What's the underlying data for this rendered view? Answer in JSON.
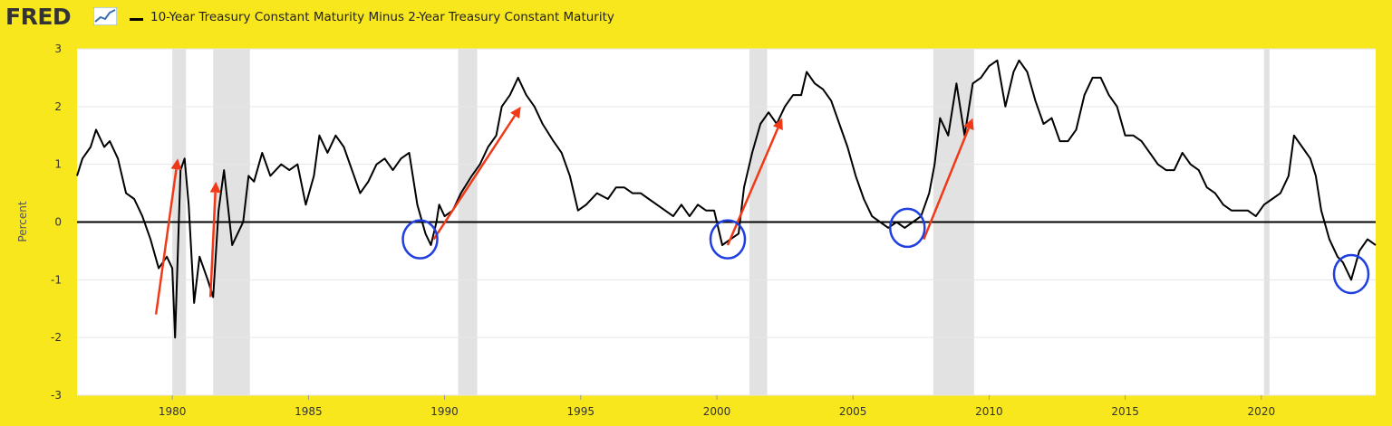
{
  "header": {
    "logo_text": "FRED",
    "logo_icon": "line-chart-icon",
    "series_title": "10-Year Treasury Constant Maturity Minus 2-Year Treasury Constant Maturity"
  },
  "colors": {
    "background": "#f8e71c",
    "plot": "#ffffff",
    "line": "#000000",
    "recession": "#e2e2e2",
    "arrow": "#f03a17",
    "circle": "#1f3fe0",
    "zero_line": "#000000"
  },
  "chart_data": {
    "type": "line",
    "title": "10-Year Treasury Constant Maturity Minus 2-Year Treasury Constant Maturity",
    "xlabel": "",
    "ylabel": "Percent",
    "xlim": [
      1976.5,
      2024.2
    ],
    "ylim": [
      -3,
      3
    ],
    "x_ticks": [
      1980,
      1985,
      1990,
      1995,
      2000,
      2005,
      2010,
      2015,
      2020
    ],
    "x_tick_labels": [
      "1980",
      "1985",
      "1990",
      "1995",
      "2000",
      "2005",
      "2010",
      "2015",
      "2020"
    ],
    "y_ticks": [
      -3,
      -2,
      -1,
      0,
      1,
      2,
      3
    ],
    "y_tick_labels": [
      "-3",
      "-2",
      "-1",
      "0",
      "1",
      "2",
      "3"
    ],
    "grid": "horizontal",
    "recessions": [
      [
        1980.0,
        1980.5
      ],
      [
        1981.5,
        1982.85
      ],
      [
        1990.5,
        1991.2
      ],
      [
        2001.2,
        2001.85
      ],
      [
        2007.95,
        2009.45
      ],
      [
        2020.1,
        2020.3
      ]
    ],
    "series": [
      {
        "points": [
          [
            1976.5,
            0.8
          ],
          [
            1976.7,
            1.1
          ],
          [
            1977.0,
            1.3
          ],
          [
            1977.2,
            1.6
          ],
          [
            1977.5,
            1.3
          ],
          [
            1977.7,
            1.4
          ],
          [
            1978.0,
            1.1
          ],
          [
            1978.3,
            0.5
          ],
          [
            1978.6,
            0.4
          ],
          [
            1978.9,
            0.1
          ],
          [
            1979.2,
            -0.3
          ],
          [
            1979.5,
            -0.8
          ],
          [
            1979.8,
            -0.6
          ],
          [
            1980.0,
            -0.8
          ],
          [
            1980.1,
            -2.0
          ],
          [
            1980.3,
            0.9
          ],
          [
            1980.45,
            1.1
          ],
          [
            1980.6,
            0.3
          ],
          [
            1980.8,
            -1.4
          ],
          [
            1981.0,
            -0.6
          ],
          [
            1981.3,
            -1.0
          ],
          [
            1981.5,
            -1.3
          ],
          [
            1981.7,
            0.2
          ],
          [
            1981.9,
            0.9
          ],
          [
            1982.2,
            -0.4
          ],
          [
            1982.4,
            -0.2
          ],
          [
            1982.6,
            0.0
          ],
          [
            1982.8,
            0.8
          ],
          [
            1983.0,
            0.7
          ],
          [
            1983.3,
            1.2
          ],
          [
            1983.6,
            0.8
          ],
          [
            1984.0,
            1.0
          ],
          [
            1984.3,
            0.9
          ],
          [
            1984.6,
            1.0
          ],
          [
            1984.9,
            0.3
          ],
          [
            1985.2,
            0.8
          ],
          [
            1985.4,
            1.5
          ],
          [
            1985.7,
            1.2
          ],
          [
            1986.0,
            1.5
          ],
          [
            1986.3,
            1.3
          ],
          [
            1986.6,
            0.9
          ],
          [
            1986.9,
            0.5
          ],
          [
            1987.2,
            0.7
          ],
          [
            1987.5,
            1.0
          ],
          [
            1987.8,
            1.1
          ],
          [
            1988.1,
            0.9
          ],
          [
            1988.4,
            1.1
          ],
          [
            1988.7,
            1.2
          ],
          [
            1989.0,
            0.3
          ],
          [
            1989.3,
            -0.2
          ],
          [
            1989.5,
            -0.4
          ],
          [
            1989.7,
            0.0
          ],
          [
            1989.8,
            0.3
          ],
          [
            1990.0,
            0.1
          ],
          [
            1990.3,
            0.2
          ],
          [
            1990.6,
            0.5
          ],
          [
            1991.0,
            0.8
          ],
          [
            1991.3,
            1.0
          ],
          [
            1991.6,
            1.3
          ],
          [
            1991.9,
            1.5
          ],
          [
            1992.1,
            2.0
          ],
          [
            1992.4,
            2.2
          ],
          [
            1992.7,
            2.5
          ],
          [
            1993.0,
            2.2
          ],
          [
            1993.3,
            2.0
          ],
          [
            1993.6,
            1.7
          ],
          [
            1994.0,
            1.4
          ],
          [
            1994.3,
            1.2
          ],
          [
            1994.6,
            0.8
          ],
          [
            1994.9,
            0.2
          ],
          [
            1995.2,
            0.3
          ],
          [
            1995.6,
            0.5
          ],
          [
            1996.0,
            0.4
          ],
          [
            1996.3,
            0.6
          ],
          [
            1996.6,
            0.6
          ],
          [
            1996.9,
            0.5
          ],
          [
            1997.2,
            0.5
          ],
          [
            1997.5,
            0.4
          ],
          [
            1997.8,
            0.3
          ],
          [
            1998.1,
            0.2
          ],
          [
            1998.4,
            0.1
          ],
          [
            1998.7,
            0.3
          ],
          [
            1999.0,
            0.1
          ],
          [
            1999.3,
            0.3
          ],
          [
            1999.6,
            0.2
          ],
          [
            1999.9,
            0.2
          ],
          [
            2000.2,
            -0.4
          ],
          [
            2000.5,
            -0.3
          ],
          [
            2000.8,
            -0.2
          ],
          [
            2001.0,
            0.6
          ],
          [
            2001.3,
            1.2
          ],
          [
            2001.6,
            1.7
          ],
          [
            2001.9,
            1.9
          ],
          [
            2002.2,
            1.7
          ],
          [
            2002.5,
            2.0
          ],
          [
            2002.8,
            2.2
          ],
          [
            2003.1,
            2.2
          ],
          [
            2003.3,
            2.6
          ],
          [
            2003.6,
            2.4
          ],
          [
            2003.9,
            2.3
          ],
          [
            2004.2,
            2.1
          ],
          [
            2004.5,
            1.7
          ],
          [
            2004.8,
            1.3
          ],
          [
            2005.1,
            0.8
          ],
          [
            2005.4,
            0.4
          ],
          [
            2005.7,
            0.1
          ],
          [
            2006.0,
            0.0
          ],
          [
            2006.3,
            -0.1
          ],
          [
            2006.6,
            0.0
          ],
          [
            2006.9,
            -0.1
          ],
          [
            2007.2,
            0.0
          ],
          [
            2007.5,
            0.1
          ],
          [
            2007.8,
            0.5
          ],
          [
            2008.0,
            1.0
          ],
          [
            2008.2,
            1.8
          ],
          [
            2008.5,
            1.5
          ],
          [
            2008.8,
            2.4
          ],
          [
            2009.1,
            1.5
          ],
          [
            2009.4,
            2.4
          ],
          [
            2009.7,
            2.5
          ],
          [
            2010.0,
            2.7
          ],
          [
            2010.3,
            2.8
          ],
          [
            2010.6,
            2.0
          ],
          [
            2010.9,
            2.6
          ],
          [
            2011.1,
            2.8
          ],
          [
            2011.4,
            2.6
          ],
          [
            2011.7,
            2.1
          ],
          [
            2012.0,
            1.7
          ],
          [
            2012.3,
            1.8
          ],
          [
            2012.6,
            1.4
          ],
          [
            2012.9,
            1.4
          ],
          [
            2013.2,
            1.6
          ],
          [
            2013.5,
            2.2
          ],
          [
            2013.8,
            2.5
          ],
          [
            2014.1,
            2.5
          ],
          [
            2014.4,
            2.2
          ],
          [
            2014.7,
            2.0
          ],
          [
            2015.0,
            1.5
          ],
          [
            2015.3,
            1.5
          ],
          [
            2015.6,
            1.4
          ],
          [
            2015.9,
            1.2
          ],
          [
            2016.2,
            1.0
          ],
          [
            2016.5,
            0.9
          ],
          [
            2016.8,
            0.9
          ],
          [
            2017.1,
            1.2
          ],
          [
            2017.4,
            1.0
          ],
          [
            2017.7,
            0.9
          ],
          [
            2018.0,
            0.6
          ],
          [
            2018.3,
            0.5
          ],
          [
            2018.6,
            0.3
          ],
          [
            2018.9,
            0.2
          ],
          [
            2019.2,
            0.2
          ],
          [
            2019.5,
            0.2
          ],
          [
            2019.8,
            0.1
          ],
          [
            2020.1,
            0.3
          ],
          [
            2020.4,
            0.4
          ],
          [
            2020.7,
            0.5
          ],
          [
            2021.0,
            0.8
          ],
          [
            2021.2,
            1.5
          ],
          [
            2021.5,
            1.3
          ],
          [
            2021.8,
            1.1
          ],
          [
            2022.0,
            0.8
          ],
          [
            2022.2,
            0.2
          ],
          [
            2022.5,
            -0.3
          ],
          [
            2022.8,
            -0.6
          ],
          [
            2023.0,
            -0.7
          ],
          [
            2023.3,
            -1.0
          ],
          [
            2023.6,
            -0.5
          ],
          [
            2023.9,
            -0.3
          ],
          [
            2024.2,
            -0.4
          ]
        ]
      }
    ],
    "annotations": {
      "arrows": [
        [
          [
            1979.4,
            -1.6
          ],
          [
            1980.2,
            1.1
          ]
        ],
        [
          [
            1981.4,
            -1.3
          ],
          [
            1981.6,
            0.7
          ]
        ],
        [
          [
            1989.6,
            -0.3
          ],
          [
            1992.8,
            2.0
          ]
        ],
        [
          [
            2000.4,
            -0.4
          ],
          [
            2002.4,
            1.8
          ]
        ],
        [
          [
            2007.6,
            -0.3
          ],
          [
            2009.4,
            1.8
          ]
        ]
      ],
      "circles": [
        [
          1989.1,
          -0.3
        ],
        [
          2000.4,
          -0.3
        ],
        [
          2007.0,
          -0.1
        ],
        [
          2023.3,
          -0.9
        ]
      ]
    }
  }
}
